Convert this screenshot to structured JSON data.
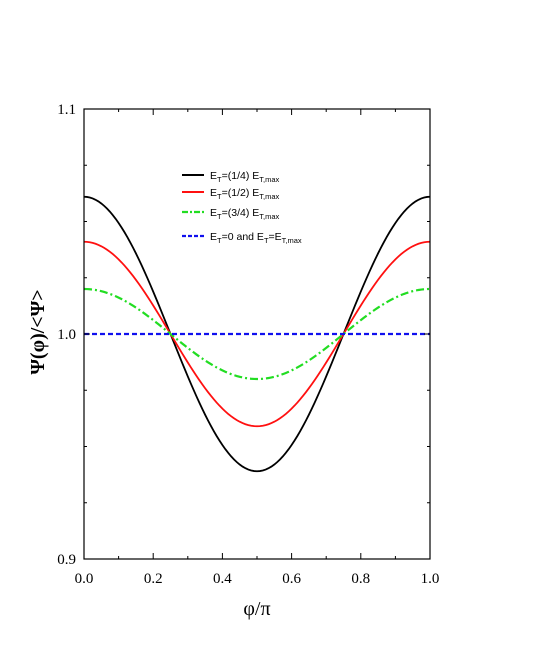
{
  "chart_data": {
    "type": "line",
    "xlabel": "φ/π",
    "ylabel": "Ψ(φ)/<Ψ>",
    "xlim": [
      0.0,
      1.0
    ],
    "ylim": [
      0.9,
      1.1
    ],
    "x_ticks": [
      "0.0",
      "0.2",
      "0.4",
      "0.6",
      "0.8",
      "1.0"
    ],
    "y_ticks": [
      "0.9",
      "1.0",
      "1.1"
    ],
    "grid": false,
    "legend_position": "top-center",
    "series": [
      {
        "name": "E_T=(1/4) E_T,max",
        "legend": {
          "main": "E",
          "parts": [
            {
              "t": "T",
              "sub": true
            },
            {
              "t": "=(1/4) E"
            },
            {
              "t": "T,max",
              "sub": true
            }
          ]
        },
        "color": "#000000",
        "dash": "solid",
        "amplitude": 0.061,
        "x": [
          0.0,
          0.05,
          0.1,
          0.15,
          0.2,
          0.25,
          0.3,
          0.35,
          0.4,
          0.45,
          0.5,
          0.55,
          0.6,
          0.65,
          0.7,
          0.75,
          0.8,
          0.85,
          0.9,
          0.95,
          1.0
        ],
        "y": [
          1.061,
          1.058,
          1.049,
          1.036,
          1.019,
          1.0,
          0.981,
          0.964,
          0.951,
          0.942,
          0.939,
          0.942,
          0.951,
          0.964,
          0.981,
          1.0,
          1.019,
          1.036,
          1.049,
          1.058,
          1.061
        ]
      },
      {
        "name": "E_T=(1/2) E_T,max",
        "legend": {
          "main": "E",
          "parts": [
            {
              "t": "T",
              "sub": true
            },
            {
              "t": "=(1/2) E"
            },
            {
              "t": "T,max",
              "sub": true
            }
          ]
        },
        "color": "#ff1010",
        "dash": "solid",
        "amplitude": 0.041,
        "x": [
          0.0,
          0.05,
          0.1,
          0.15,
          0.2,
          0.25,
          0.3,
          0.35,
          0.4,
          0.45,
          0.5,
          0.55,
          0.6,
          0.65,
          0.7,
          0.75,
          0.8,
          0.85,
          0.9,
          0.95,
          1.0
        ],
        "y": [
          1.041,
          1.039,
          1.033,
          1.024,
          1.013,
          1.0,
          0.987,
          0.976,
          0.967,
          0.961,
          0.959,
          0.961,
          0.967,
          0.976,
          0.987,
          1.0,
          1.013,
          1.024,
          1.033,
          1.039,
          1.041
        ]
      },
      {
        "name": "E_T=(3/4) E_T,max",
        "legend": {
          "main": "E",
          "parts": [
            {
              "t": "T",
              "sub": true
            },
            {
              "t": "=(3/4) E"
            },
            {
              "t": "T,max",
              "sub": true
            }
          ]
        },
        "color": "#22dd22",
        "dash": "dashdot",
        "amplitude": 0.02,
        "x": [
          0.0,
          0.05,
          0.1,
          0.15,
          0.2,
          0.25,
          0.3,
          0.35,
          0.4,
          0.45,
          0.5,
          0.55,
          0.6,
          0.65,
          0.7,
          0.75,
          0.8,
          0.85,
          0.9,
          0.95,
          1.0
        ],
        "y": [
          1.02,
          1.019,
          1.016,
          1.012,
          1.006,
          1.0,
          0.994,
          0.988,
          0.984,
          0.981,
          0.98,
          0.981,
          0.984,
          0.988,
          0.994,
          1.0,
          1.006,
          1.012,
          1.016,
          1.019,
          1.02
        ]
      },
      {
        "name": "E_T=0 and E_T=E_T,max",
        "legend": {
          "main": "E",
          "parts": [
            {
              "t": "T",
              "sub": true
            },
            {
              "t": "=0 and E"
            },
            {
              "t": "T",
              "sub": true
            },
            {
              "t": "=E"
            },
            {
              "t": "T,max",
              "sub": true
            }
          ]
        },
        "color": "#1010ee",
        "dash": "dashed",
        "amplitude": 0.0,
        "x": [
          0.0,
          1.0
        ],
        "y": [
          1.0,
          1.0
        ]
      }
    ]
  }
}
